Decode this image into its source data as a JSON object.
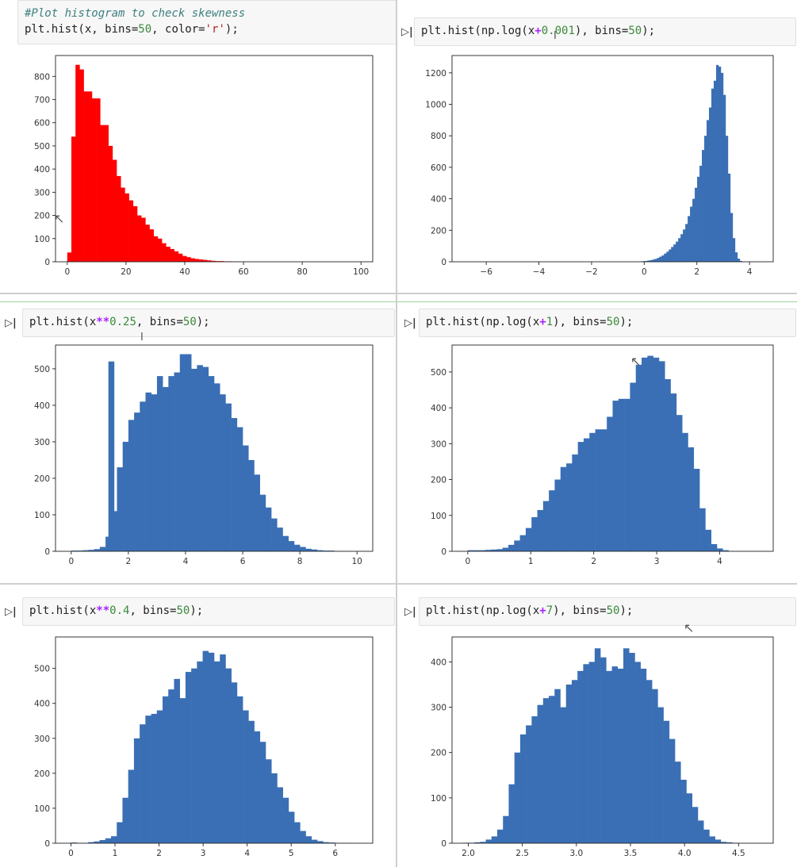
{
  "cells": [
    {
      "id": "c1",
      "code_lines": [
        [
          {
            "t": "#Plot histogram to check skewness",
            "c": "comment"
          }
        ],
        [
          {
            "t": "plt.hist(x, bins="
          },
          {
            "t": "50",
            "c": "num"
          },
          {
            "t": ", color="
          },
          {
            "t": "'r'",
            "c": "str"
          },
          {
            "t": ");"
          }
        ]
      ]
    },
    {
      "id": "c2",
      "code_lines": [
        [
          {
            "t": "plt.hist(np.log(x"
          },
          {
            "t": "+",
            "c": "op"
          },
          {
            "t": "0.001",
            "c": "num"
          },
          {
            "t": "), bins="
          },
          {
            "t": "50",
            "c": "num"
          },
          {
            "t": ");"
          }
        ]
      ]
    },
    {
      "id": "c3",
      "code_lines": [
        [
          {
            "t": "plt.hist(x"
          },
          {
            "t": "**",
            "c": "op"
          },
          {
            "t": "0.25",
            "c": "num"
          },
          {
            "t": ", bins="
          },
          {
            "t": "50",
            "c": "num"
          },
          {
            "t": ");"
          }
        ]
      ]
    },
    {
      "id": "c4",
      "code_lines": [
        [
          {
            "t": "plt.hist(np.log(x"
          },
          {
            "t": "+",
            "c": "op"
          },
          {
            "t": "1",
            "c": "num"
          },
          {
            "t": "), bins="
          },
          {
            "t": "50",
            "c": "num"
          },
          {
            "t": ");"
          }
        ]
      ]
    },
    {
      "id": "c5",
      "code_lines": [
        [
          {
            "t": "plt.hist(x"
          },
          {
            "t": "**",
            "c": "op"
          },
          {
            "t": "0.4",
            "c": "num"
          },
          {
            "t": ", bins="
          },
          {
            "t": "50",
            "c": "num"
          },
          {
            "t": ");"
          }
        ]
      ]
    },
    {
      "id": "c6",
      "code_lines": [
        [
          {
            "t": "plt.hist(np.log(x"
          },
          {
            "t": "+",
            "c": "op"
          },
          {
            "t": "7",
            "c": "num"
          },
          {
            "t": "), bins="
          },
          {
            "t": "50",
            "c": "num"
          },
          {
            "t": ");"
          }
        ]
      ]
    }
  ],
  "run_icon": "run-cell-icon",
  "colors": {
    "red": "#ff0000",
    "blue": "#3a6fb5"
  },
  "chart_data": [
    {
      "id": "h1",
      "type": "bar",
      "color": "#ff0000",
      "xlim": [
        -4,
        104
      ],
      "ylim": [
        0,
        890
      ],
      "xticks": [
        0,
        20,
        40,
        60,
        80,
        100
      ],
      "yticks": [
        0,
        100,
        200,
        300,
        400,
        500,
        600,
        700,
        800
      ],
      "bin_start": 0,
      "bin_width": 1.4,
      "values": [
        40,
        540,
        850,
        830,
        735,
        735,
        705,
        705,
        590,
        590,
        500,
        440,
        370,
        320,
        295,
        265,
        240,
        200,
        190,
        160,
        140,
        110,
        100,
        80,
        65,
        55,
        45,
        35,
        25,
        20,
        15,
        12,
        10,
        8,
        6,
        4,
        3,
        3,
        2,
        2,
        1,
        1,
        0,
        0,
        0,
        0,
        0,
        0,
        0,
        0
      ]
    },
    {
      "id": "h2",
      "type": "bar",
      "color": "#3a6fb5",
      "xlim": [
        -7.3,
        4.9
      ],
      "ylim": [
        0,
        1310
      ],
      "xticks": [
        -6,
        -4,
        -2,
        0,
        2,
        4
      ],
      "yticks": [
        0,
        200,
        400,
        600,
        800,
        1000,
        1200
      ],
      "bin_start": -0.15,
      "bin_width": 0.09,
      "values": [
        3,
        4,
        5,
        8,
        10,
        14,
        18,
        24,
        32,
        40,
        52,
        64,
        78,
        94,
        110,
        128,
        150,
        175,
        205,
        240,
        290,
        350,
        400,
        470,
        540,
        610,
        710,
        800,
        900,
        980,
        1100,
        1150,
        1250,
        1240,
        1200,
        1060,
        800,
        560,
        310,
        150,
        60,
        20,
        5,
        0,
        0,
        0,
        0,
        0,
        0,
        0
      ]
    },
    {
      "id": "h3",
      "type": "bar",
      "color": "#3a6fb5",
      "xlim": [
        -0.55,
        10.55
      ],
      "ylim": [
        0,
        565
      ],
      "xticks": [
        0,
        2,
        4,
        6,
        8,
        10
      ],
      "yticks": [
        0,
        100,
        200,
        300,
        400,
        500
      ],
      "bin_start": 0,
      "bin_width": 0.2,
      "values": [
        2,
        2,
        3,
        4,
        6,
        12,
        40,
        110,
        230,
        300,
        360,
        380,
        410,
        435,
        430,
        480,
        450,
        480,
        490,
        540,
        540,
        500,
        510,
        505,
        480,
        460,
        430,
        405,
        365,
        340,
        290,
        250,
        210,
        155,
        120,
        90,
        65,
        42,
        28,
        18,
        12,
        7,
        5,
        3,
        2,
        2,
        1,
        1,
        1,
        0
      ],
      "extras": [
        {
          "x": 1.3,
          "w": 0.2,
          "v": 520
        }
      ]
    },
    {
      "id": "h4",
      "type": "bar",
      "color": "#3a6fb5",
      "xlim": [
        -0.25,
        4.85
      ],
      "ylim": [
        0,
        575
      ],
      "xticks": [
        0,
        1,
        2,
        3,
        4
      ],
      "yticks": [
        0,
        100,
        200,
        300,
        400,
        500
      ],
      "bin_start": 0,
      "bin_width": 0.092,
      "values": [
        3,
        3,
        3,
        4,
        5,
        6,
        10,
        18,
        30,
        45,
        65,
        95,
        115,
        140,
        170,
        200,
        235,
        245,
        270,
        305,
        315,
        330,
        340,
        340,
        375,
        420,
        425,
        425,
        470,
        520,
        540,
        545,
        540,
        530,
        480,
        440,
        380,
        330,
        290,
        230,
        120,
        60,
        20,
        8,
        3,
        1,
        0,
        0,
        0,
        0
      ]
    },
    {
      "id": "h5",
      "type": "bar",
      "color": "#3a6fb5",
      "xlim": [
        -0.35,
        6.85
      ],
      "ylim": [
        0,
        590
      ],
      "xticks": [
        0,
        1,
        2,
        3,
        4,
        5,
        6
      ],
      "yticks": [
        0,
        100,
        200,
        300,
        400,
        500
      ],
      "bin_start": 0,
      "bin_width": 0.13,
      "values": [
        2,
        1,
        1,
        3,
        5,
        9,
        14,
        20,
        60,
        130,
        210,
        300,
        340,
        365,
        370,
        380,
        420,
        440,
        470,
        415,
        490,
        500,
        520,
        550,
        545,
        520,
        540,
        500,
        460,
        420,
        380,
        350,
        320,
        290,
        240,
        200,
        160,
        130,
        90,
        60,
        35,
        20,
        10,
        6,
        3,
        2,
        1,
        1,
        1,
        0
      ],
      "extras": [
        {
          "x": 4.6,
          "w": 0.13,
          "v": 0
        }
      ]
    },
    {
      "id": "h6",
      "type": "bar",
      "color": "#3a6fb5",
      "xlim": [
        1.85,
        4.82
      ],
      "ylim": [
        0,
        455
      ],
      "xticks": [
        2.0,
        2.5,
        3.0,
        3.5,
        4.0,
        4.5
      ],
      "xtick_labels": [
        "2.0",
        "2.5",
        "3.0",
        "3.5",
        "4.0",
        "4.5"
      ],
      "yticks": [
        0,
        100,
        200,
        300,
        400
      ],
      "bin_start": 1.95,
      "bin_width": 0.053,
      "values": [
        1,
        1,
        2,
        3,
        8,
        15,
        30,
        60,
        130,
        200,
        240,
        260,
        280,
        305,
        320,
        325,
        340,
        300,
        350,
        360,
        380,
        395,
        400,
        430,
        410,
        380,
        390,
        385,
        430,
        420,
        400,
        385,
        360,
        340,
        300,
        270,
        230,
        180,
        140,
        110,
        80,
        50,
        30,
        15,
        8,
        3,
        2,
        1,
        0,
        0
      ]
    }
  ]
}
